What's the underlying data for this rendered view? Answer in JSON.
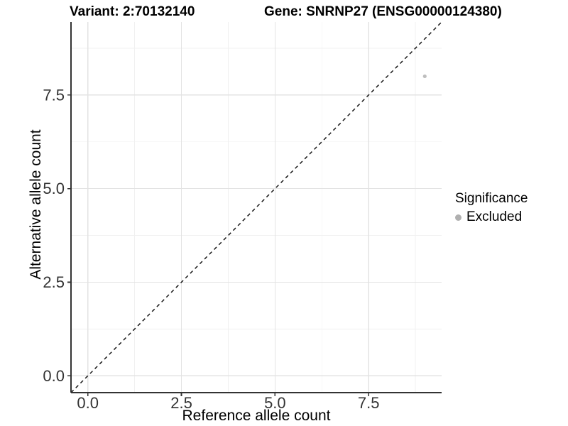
{
  "header": {
    "title_left": "Variant: 2:70132140",
    "title_right": "Gene: SNRNP27 (ENSG00000124380)"
  },
  "chart_data": {
    "type": "scatter",
    "titles": {
      "left": "Variant: 2:70132140",
      "right": "Gene: SNRNP27 (ENSG00000124380)"
    },
    "xlabel": "Reference allele count",
    "ylabel": "Alternative allele count",
    "xlim": [
      -0.45,
      9.45
    ],
    "ylim": [
      -0.45,
      9.45
    ],
    "x_major_ticks": [
      0,
      2.5,
      5,
      7.5
    ],
    "x_tick_labels": [
      "0.0",
      "2.5",
      "5.0",
      "7.5"
    ],
    "x_minor_ticks": [
      1.25,
      3.75,
      6.25,
      8.75
    ],
    "y_major_ticks": [
      0,
      2.5,
      5,
      7.5
    ],
    "y_tick_labels": [
      "0.0",
      "2.5",
      "5.0",
      "7.5"
    ],
    "y_minor_ticks": [
      1.25,
      3.75,
      6.25,
      8.75
    ],
    "grid": true,
    "axis_style": "left-bottom-lines",
    "reference_line": {
      "slope": 1,
      "intercept": 0,
      "style": "dashed"
    },
    "series": [
      {
        "name": "Excluded",
        "points": [
          {
            "x": 9,
            "y": 8
          }
        ]
      }
    ],
    "legend": {
      "title": "Significance",
      "position": "right",
      "items": [
        {
          "label": "Excluded"
        }
      ]
    }
  },
  "colors": {
    "background": "#ffffff",
    "grid_major": "#e3e3e3",
    "grid_minor": "#f0f0f0",
    "axis_line": "#333333",
    "tick_mark": "#333333",
    "tick_label": "#333333",
    "reference_line": "#1a1a1a",
    "point": "#bebebe",
    "legend_dot": "#b0b0b0",
    "title_text": "#000000"
  }
}
